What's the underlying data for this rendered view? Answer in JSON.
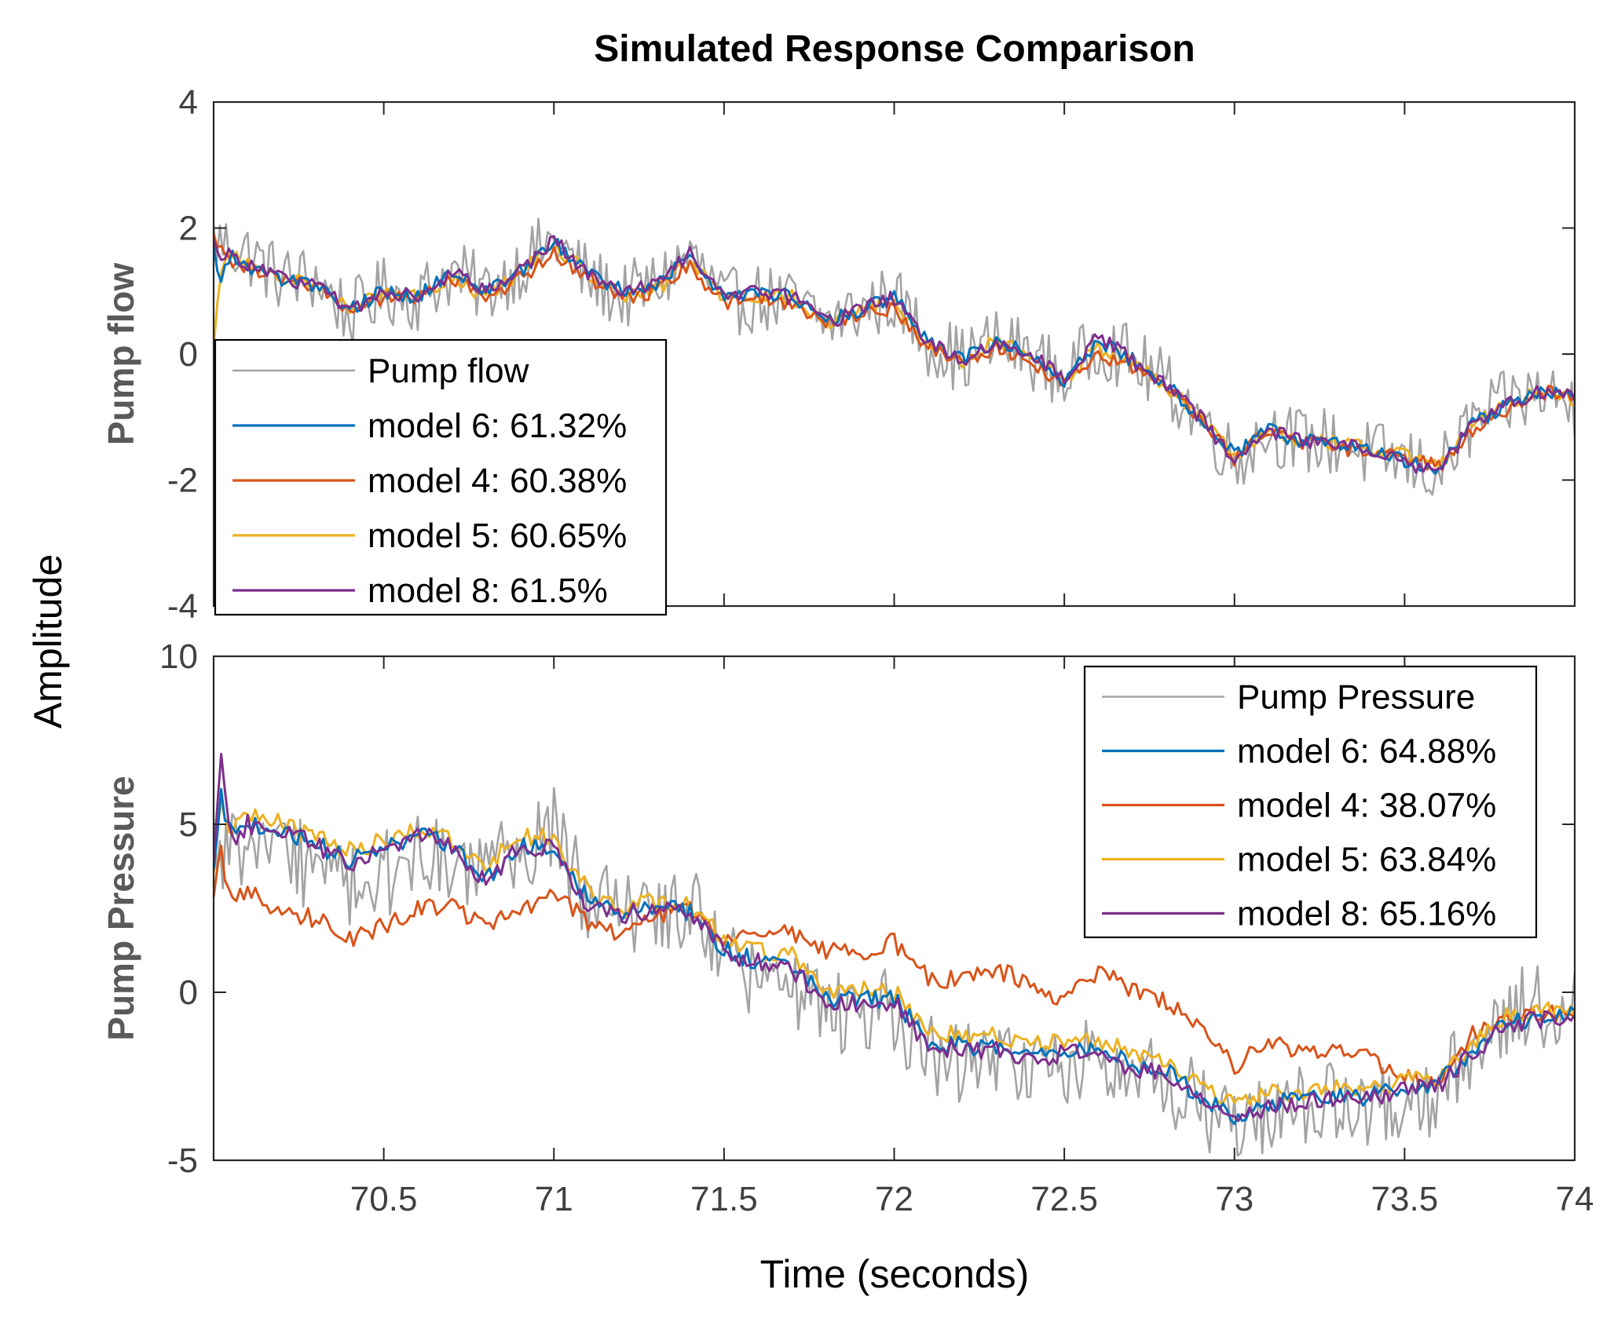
{
  "title": "Simulated Response Comparison",
  "shared_ylabel": "Amplitude",
  "xlabel": "Time (seconds)",
  "colors": {
    "measured": "#a3a3a3",
    "model6": "#0072bd",
    "model4": "#d95319",
    "model5": "#edb120",
    "model8": "#7e2f8e"
  },
  "chart_data": [
    {
      "type": "line",
      "ylabel": "Pump flow",
      "xlim": [
        70.0,
        74.0
      ],
      "ylim": [
        -4,
        4
      ],
      "xticks": [
        70.5,
        71,
        71.5,
        72,
        72.5,
        73,
        73.5,
        74
      ],
      "xtick_labels": [
        "70.5",
        "71",
        "71.5",
        "72",
        "72.5",
        "73",
        "73.5",
        "74"
      ],
      "yticks": [
        -4,
        -2,
        0,
        2,
        4
      ],
      "ytick_labels": [
        "-4",
        "-2",
        "0",
        "2",
        "4"
      ],
      "legend_position": "lower-left",
      "legend": [
        {
          "label": "Pump flow",
          "color_key": "measured"
        },
        {
          "label": "model 6: 61.32%",
          "color_key": "model6"
        },
        {
          "label": "model 4: 60.38%",
          "color_key": "model4"
        },
        {
          "label": "model 5: 60.65%",
          "color_key": "model5"
        },
        {
          "label": "model 8: 61.5%",
          "color_key": "model8"
        }
      ],
      "measured_noise": 0.55,
      "series": [
        {
          "name": "model 5",
          "color_key": "model5",
          "x": [
            70.0,
            70.02,
            70.05,
            70.1,
            70.2,
            70.3,
            70.4,
            70.5,
            70.6,
            70.7,
            70.8,
            70.9,
            71.0,
            71.1,
            71.2,
            71.3,
            71.4,
            71.5,
            71.6,
            71.7,
            71.8,
            71.9,
            72.0,
            72.1,
            72.2,
            72.3,
            72.4,
            72.5,
            72.6,
            72.7,
            72.8,
            72.9,
            73.0,
            73.1,
            73.2,
            73.3,
            73.4,
            73.5,
            73.6,
            73.7,
            73.8,
            73.9,
            74.0
          ],
          "y": [
            0.1,
            1.2,
            1.6,
            1.4,
            1.2,
            1.1,
            0.7,
            1.0,
            0.9,
            1.2,
            0.9,
            1.3,
            1.7,
            1.3,
            0.9,
            1.0,
            1.5,
            0.9,
            0.9,
            0.9,
            0.5,
            0.7,
            0.8,
            0.2,
            -0.1,
            0.2,
            0.0,
            -0.4,
            0.1,
            -0.1,
            -0.5,
            -1.0,
            -1.6,
            -1.2,
            -1.4,
            -1.4,
            -1.5,
            -1.6,
            -1.8,
            -1.1,
            -0.8,
            -0.6,
            -0.7
          ]
        },
        {
          "name": "model 4",
          "color_key": "model4",
          "x": [
            70.0,
            70.02,
            70.05,
            70.1,
            70.2,
            70.3,
            70.4,
            70.5,
            70.6,
            70.7,
            70.8,
            70.9,
            71.0,
            71.1,
            71.2,
            71.3,
            71.4,
            71.5,
            71.6,
            71.7,
            71.8,
            71.9,
            72.0,
            72.1,
            72.2,
            72.3,
            72.4,
            72.5,
            72.6,
            72.7,
            72.8,
            72.9,
            73.0,
            73.1,
            73.2,
            73.3,
            73.4,
            73.5,
            73.6,
            73.7,
            73.8,
            73.9,
            74.0
          ],
          "y": [
            1.9,
            1.7,
            1.5,
            1.4,
            1.2,
            1.1,
            0.7,
            0.9,
            0.9,
            1.2,
            0.9,
            1.2,
            1.6,
            1.2,
            0.9,
            1.0,
            1.4,
            0.8,
            0.9,
            0.8,
            0.5,
            0.6,
            0.7,
            0.1,
            -0.1,
            0.1,
            -0.1,
            -0.5,
            0.0,
            -0.2,
            -0.5,
            -1.0,
            -1.7,
            -1.2,
            -1.4,
            -1.5,
            -1.5,
            -1.6,
            -1.8,
            -1.2,
            -0.9,
            -0.6,
            -0.7
          ]
        },
        {
          "name": "model 6",
          "color_key": "model6",
          "x": [
            70.0,
            70.02,
            70.05,
            70.1,
            70.2,
            70.3,
            70.4,
            70.5,
            70.6,
            70.7,
            70.8,
            70.9,
            71.0,
            71.1,
            71.2,
            71.3,
            71.4,
            71.5,
            71.6,
            71.7,
            71.8,
            71.9,
            72.0,
            72.1,
            72.2,
            72.3,
            72.4,
            72.5,
            72.6,
            72.7,
            72.8,
            72.9,
            73.0,
            73.1,
            73.2,
            73.3,
            73.4,
            73.5,
            73.6,
            73.7,
            73.8,
            73.9,
            74.0
          ],
          "y": [
            1.7,
            1.1,
            1.6,
            1.4,
            1.2,
            1.1,
            0.7,
            1.0,
            0.9,
            1.3,
            1.0,
            1.3,
            1.8,
            1.3,
            1.0,
            1.1,
            1.6,
            0.9,
            1.0,
            0.9,
            0.5,
            0.7,
            0.9,
            0.2,
            -0.1,
            0.2,
            0.0,
            -0.4,
            0.2,
            -0.1,
            -0.5,
            -1.0,
            -1.6,
            -1.2,
            -1.4,
            -1.4,
            -1.5,
            -1.7,
            -1.8,
            -1.1,
            -0.8,
            -0.6,
            -0.7
          ]
        },
        {
          "name": "model 8",
          "color_key": "model8",
          "x": [
            70.0,
            70.02,
            70.05,
            70.1,
            70.2,
            70.3,
            70.4,
            70.5,
            70.6,
            70.7,
            70.8,
            70.9,
            71.0,
            71.1,
            71.2,
            71.3,
            71.4,
            71.5,
            71.6,
            71.7,
            71.8,
            71.9,
            72.0,
            72.1,
            72.2,
            72.3,
            72.4,
            72.5,
            72.6,
            72.7,
            72.8,
            72.9,
            73.0,
            73.1,
            73.2,
            73.3,
            73.4,
            73.5,
            73.6,
            73.7,
            73.8,
            73.9,
            74.0
          ],
          "y": [
            1.8,
            1.5,
            1.6,
            1.4,
            1.2,
            1.1,
            0.7,
            1.0,
            0.9,
            1.3,
            1.0,
            1.3,
            1.8,
            1.3,
            1.0,
            1.1,
            1.6,
            0.9,
            1.0,
            0.9,
            0.5,
            0.7,
            0.9,
            0.2,
            -0.1,
            0.2,
            0.0,
            -0.4,
            0.3,
            -0.1,
            -0.5,
            -1.0,
            -1.7,
            -1.2,
            -1.4,
            -1.4,
            -1.5,
            -1.7,
            -1.9,
            -1.1,
            -0.8,
            -0.6,
            -0.7
          ]
        },
        {
          "name": "Pump flow",
          "color_key": "measured",
          "x": [
            70.0,
            70.1,
            70.2,
            70.3,
            70.4,
            70.5,
            70.6,
            70.7,
            70.8,
            70.9,
            71.0,
            71.1,
            71.2,
            71.3,
            71.4,
            71.5,
            71.6,
            71.7,
            71.8,
            71.9,
            72.0,
            72.1,
            72.2,
            72.3,
            72.4,
            72.5,
            72.6,
            72.7,
            72.8,
            72.9,
            73.0,
            73.1,
            73.2,
            73.3,
            73.4,
            73.5,
            73.6,
            73.7,
            73.8,
            73.9,
            74.0
          ],
          "y": [
            1.8,
            1.6,
            1.2,
            1.2,
            0.6,
            1.0,
            0.9,
            1.3,
            1.0,
            1.4,
            1.8,
            1.2,
            0.9,
            1.1,
            1.6,
            0.8,
            0.9,
            0.8,
            0.5,
            0.7,
            0.9,
            0.2,
            -0.1,
            0.2,
            0.0,
            -0.4,
            0.2,
            -0.1,
            -0.5,
            -1.0,
            -1.7,
            -1.2,
            -1.4,
            -1.4,
            -1.6,
            -1.7,
            -1.9,
            -1.1,
            -0.8,
            -0.6,
            -0.8
          ]
        }
      ]
    },
    {
      "type": "line",
      "ylabel": "Pump Pressure",
      "xlim": [
        70.0,
        74.0
      ],
      "ylim": [
        -5,
        10
      ],
      "xticks": [
        70.5,
        71,
        71.5,
        72,
        72.5,
        73,
        73.5,
        74
      ],
      "xtick_labels": [
        "70.5",
        "71",
        "71.5",
        "72",
        "72.5",
        "73",
        "73.5",
        "74"
      ],
      "yticks": [
        -5,
        0,
        5,
        10
      ],
      "ytick_labels": [
        "-5",
        "0",
        "5",
        "10"
      ],
      "legend_position": "top-right",
      "legend": [
        {
          "label": "Pump Pressure",
          "color_key": "measured"
        },
        {
          "label": "model 6: 64.88%",
          "color_key": "model6"
        },
        {
          "label": "model 4: 38.07%",
          "color_key": "model4"
        },
        {
          "label": "model 5: 63.84%",
          "color_key": "model5"
        },
        {
          "label": "model 8: 65.16%",
          "color_key": "model8"
        }
      ],
      "measured_noise": 1.3,
      "series": [
        {
          "name": "model 4",
          "color_key": "model4",
          "x": [
            70.0,
            70.02,
            70.05,
            70.1,
            70.2,
            70.3,
            70.4,
            70.5,
            70.6,
            70.7,
            70.8,
            70.9,
            71.0,
            71.1,
            71.2,
            71.3,
            71.4,
            71.5,
            71.6,
            71.7,
            71.8,
            71.9,
            72.0,
            72.1,
            72.2,
            72.3,
            72.4,
            72.5,
            72.6,
            72.7,
            72.8,
            72.9,
            73.0,
            73.1,
            73.2,
            73.3,
            73.4,
            73.5,
            73.6,
            73.7,
            73.8,
            73.9,
            74.0
          ],
          "y": [
            2.8,
            4.2,
            2.8,
            3.0,
            2.3,
            2.2,
            1.6,
            2.0,
            2.5,
            2.5,
            2.0,
            2.4,
            3.1,
            2.0,
            1.8,
            2.3,
            2.5,
            1.6,
            1.7,
            1.8,
            1.2,
            1.2,
            1.5,
            0.4,
            0.4,
            0.7,
            0.2,
            -0.3,
            0.6,
            0.1,
            -0.3,
            -1.1,
            -2.2,
            -1.5,
            -1.8,
            -1.8,
            -2.0,
            -2.4,
            -2.8,
            -1.2,
            -0.7,
            -0.6,
            -0.6
          ]
        },
        {
          "name": "model 5",
          "color_key": "model5",
          "x": [
            70.0,
            70.02,
            70.05,
            70.1,
            70.2,
            70.3,
            70.4,
            70.5,
            70.6,
            70.7,
            70.8,
            70.9,
            71.0,
            71.1,
            71.2,
            71.3,
            71.4,
            71.5,
            71.6,
            71.7,
            71.8,
            71.9,
            72.0,
            72.1,
            72.2,
            72.3,
            72.4,
            72.5,
            72.6,
            72.7,
            72.8,
            72.9,
            73.0,
            73.1,
            73.2,
            73.3,
            73.4,
            73.5,
            73.6,
            73.7,
            73.8,
            73.9,
            74.0
          ],
          "y": [
            3.5,
            5.5,
            4.8,
            5.3,
            5.0,
            4.6,
            4.2,
            4.5,
            4.8,
            4.6,
            3.8,
            4.6,
            4.6,
            3.0,
            2.5,
            2.7,
            2.6,
            1.6,
            1.2,
            1.1,
            0.1,
            0.1,
            0.0,
            -1.1,
            -1.3,
            -1.3,
            -1.6,
            -1.4,
            -1.4,
            -1.8,
            -2.0,
            -2.7,
            -3.4,
            -3.0,
            -3.0,
            -2.9,
            -2.9,
            -2.6,
            -2.5,
            -1.5,
            -0.7,
            -0.6,
            -0.5
          ]
        },
        {
          "name": "model 6",
          "color_key": "model6",
          "x": [
            70.0,
            70.02,
            70.05,
            70.1,
            70.2,
            70.3,
            70.4,
            70.5,
            70.6,
            70.7,
            70.8,
            70.9,
            71.0,
            71.1,
            71.2,
            71.3,
            71.4,
            71.5,
            71.6,
            71.7,
            71.8,
            71.9,
            72.0,
            72.1,
            72.2,
            72.3,
            72.4,
            72.5,
            72.6,
            72.7,
            72.8,
            72.9,
            73.0,
            73.1,
            73.2,
            73.3,
            73.4,
            73.5,
            73.6,
            73.7,
            73.8,
            73.9,
            74.0
          ],
          "y": [
            3.6,
            6.0,
            4.6,
            5.1,
            4.8,
            4.4,
            3.9,
            4.3,
            4.7,
            4.4,
            3.4,
            4.3,
            4.4,
            2.7,
            2.3,
            2.5,
            2.4,
            1.3,
            0.9,
            0.8,
            -0.2,
            -0.2,
            -0.2,
            -1.5,
            -1.6,
            -1.6,
            -1.9,
            -1.7,
            -1.6,
            -2.2,
            -2.3,
            -3.1,
            -3.8,
            -3.3,
            -3.2,
            -3.1,
            -3.1,
            -2.8,
            -2.7,
            -1.7,
            -0.9,
            -0.8,
            -0.7
          ]
        },
        {
          "name": "model 8",
          "color_key": "model8",
          "x": [
            70.0,
            70.02,
            70.05,
            70.1,
            70.2,
            70.3,
            70.4,
            70.5,
            70.6,
            70.7,
            70.8,
            70.9,
            71.0,
            71.1,
            71.2,
            71.3,
            71.4,
            71.5,
            71.6,
            71.7,
            71.8,
            71.9,
            72.0,
            72.1,
            72.2,
            72.3,
            72.4,
            72.5,
            72.6,
            72.7,
            72.8,
            72.9,
            73.0,
            73.1,
            73.2,
            73.3,
            73.4,
            73.5,
            73.6,
            73.7,
            73.8,
            73.9,
            74.0
          ],
          "y": [
            3.8,
            7.2,
            4.5,
            5.0,
            4.8,
            4.4,
            3.8,
            4.3,
            4.7,
            4.4,
            3.3,
            4.3,
            4.3,
            2.6,
            2.3,
            2.5,
            2.4,
            1.2,
            0.9,
            0.7,
            -0.3,
            -0.3,
            -0.3,
            -1.6,
            -1.7,
            -1.7,
            -2.0,
            -1.8,
            -1.7,
            -2.3,
            -2.4,
            -3.2,
            -3.9,
            -3.4,
            -3.3,
            -3.2,
            -3.2,
            -2.9,
            -2.8,
            -1.8,
            -1.0,
            -0.8,
            -0.7
          ]
        },
        {
          "name": "Pump Pressure",
          "color_key": "measured",
          "x": [
            70.0,
            70.1,
            70.2,
            70.3,
            70.4,
            70.5,
            70.6,
            70.7,
            70.8,
            70.9,
            71.0,
            71.1,
            71.2,
            71.3,
            71.4,
            71.5,
            71.6,
            71.7,
            71.8,
            71.9,
            72.0,
            72.1,
            72.2,
            72.3,
            72.4,
            72.5,
            72.6,
            72.7,
            72.8,
            72.9,
            73.0,
            73.1,
            73.2,
            73.3,
            73.4,
            73.5,
            73.6,
            73.7,
            73.8,
            73.9,
            74.0
          ],
          "y": [
            4.5,
            4.0,
            4.2,
            3.6,
            3.0,
            3.5,
            4.0,
            3.8,
            3.4,
            4.3,
            4.8,
            2.8,
            2.2,
            2.4,
            2.6,
            0.8,
            0.5,
            0.3,
            -0.6,
            -0.8,
            -0.5,
            -2.0,
            -2.2,
            -1.8,
            -2.4,
            -2.0,
            -2.1,
            -2.6,
            -2.6,
            -3.4,
            -3.9,
            -3.7,
            -3.4,
            -3.4,
            -3.5,
            -3.2,
            -3.0,
            -1.6,
            -0.6,
            -0.4,
            -0.6
          ]
        }
      ]
    }
  ]
}
